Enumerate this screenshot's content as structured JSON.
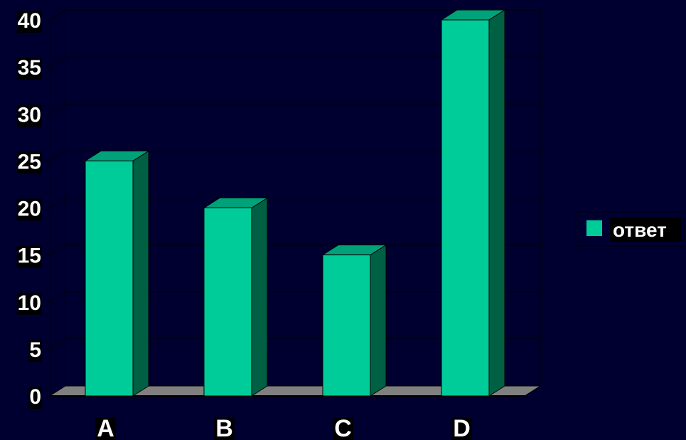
{
  "chart_data": {
    "type": "bar",
    "categories": [
      "A",
      "B",
      "C",
      "D"
    ],
    "series": [
      {
        "name": "ответ",
        "values": [
          25,
          20,
          15,
          40
        ]
      }
    ],
    "ylim": [
      0,
      40
    ],
    "yticks": [
      0,
      5,
      10,
      15,
      20,
      25,
      30,
      35,
      40
    ],
    "grid": true,
    "legend": "right",
    "style": "3d",
    "colors": {
      "background": "#000030",
      "bar_front": "#00CC99",
      "bar_top": "#00A27A",
      "bar_side": "#006044",
      "floor": "#808080",
      "grid": "#000000"
    }
  }
}
